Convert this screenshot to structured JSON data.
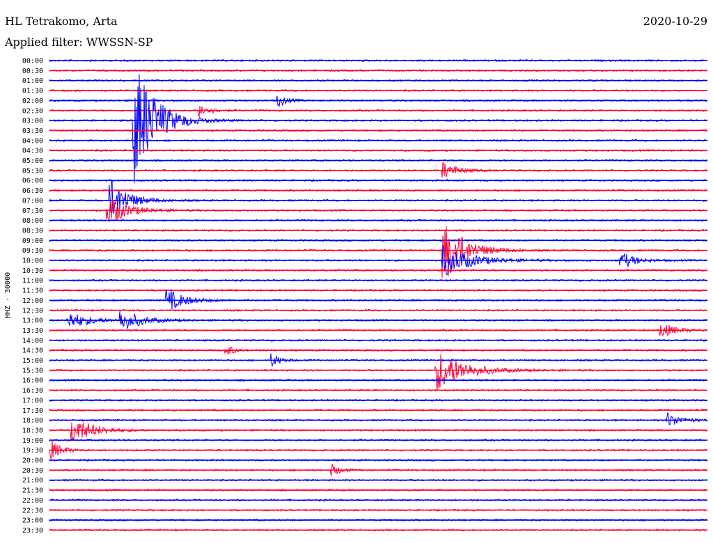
{
  "header": {
    "station": "HL Tetrakomo, Arta",
    "date": "2020-10-29",
    "filter": "Applied filter: WWSSN-SP"
  },
  "chart_data": {
    "type": "line",
    "title": "HL Tetrakomo, Arta",
    "ylabel": "HHZ - 30000",
    "rows": [
      "00:00",
      "00:30",
      "01:00",
      "01:30",
      "02:00",
      "02:30",
      "03:00",
      "03:30",
      "04:00",
      "04:30",
      "05:00",
      "05:30",
      "06:00",
      "06:30",
      "07:00",
      "07:30",
      "08:00",
      "08:30",
      "09:00",
      "09:30",
      "10:00",
      "10:30",
      "11:00",
      "11:30",
      "12:00",
      "12:30",
      "13:00",
      "13:30",
      "14:00",
      "14:30",
      "15:00",
      "15:30",
      "16:00",
      "16:30",
      "17:00",
      "17:30",
      "18:00",
      "18:30",
      "19:00",
      "19:30",
      "20:00",
      "20:30",
      "21:00",
      "21:30",
      "22:00",
      "22:30",
      "23:00",
      "23:30"
    ],
    "trace_colors": [
      "#0000ff",
      "#ff0033"
    ],
    "events": [
      {
        "row": 6,
        "x": 0.13,
        "amp": 90,
        "dur": 0.03
      },
      {
        "row": 14,
        "x": 0.095,
        "amp": 28,
        "dur": 0.025
      },
      {
        "row": 15,
        "x": 0.09,
        "amp": 20,
        "dur": 0.03
      },
      {
        "row": 19,
        "x": 0.6,
        "amp": 45,
        "dur": 0.03
      },
      {
        "row": 20,
        "x": 0.6,
        "amp": 22,
        "dur": 0.04
      },
      {
        "row": 20,
        "x": 0.87,
        "amp": 12,
        "dur": 0.02
      },
      {
        "row": 24,
        "x": 0.18,
        "amp": 16,
        "dur": 0.025
      },
      {
        "row": 26,
        "x": 0.03,
        "amp": 12,
        "dur": 0.03
      },
      {
        "row": 26,
        "x": 0.11,
        "amp": 14,
        "dur": 0.03
      },
      {
        "row": 31,
        "x": 0.59,
        "amp": 28,
        "dur": 0.04
      },
      {
        "row": 36,
        "x": 0.94,
        "amp": 10,
        "dur": 0.02
      },
      {
        "row": 37,
        "x": 0.035,
        "amp": 20,
        "dur": 0.03
      },
      {
        "row": 4,
        "x": 0.35,
        "amp": 8,
        "dur": 0.012
      },
      {
        "row": 5,
        "x": 0.23,
        "amp": 9,
        "dur": 0.015
      },
      {
        "row": 11,
        "x": 0.6,
        "amp": 11,
        "dur": 0.02
      },
      {
        "row": 27,
        "x": 0.93,
        "amp": 11,
        "dur": 0.02
      },
      {
        "row": 29,
        "x": 0.27,
        "amp": 8,
        "dur": 0.01
      },
      {
        "row": 30,
        "x": 0.34,
        "amp": 9,
        "dur": 0.012
      },
      {
        "row": 41,
        "x": 0.43,
        "amp": 8,
        "dur": 0.012
      },
      {
        "row": 39,
        "x": 0.005,
        "amp": 12,
        "dur": 0.015
      }
    ]
  }
}
